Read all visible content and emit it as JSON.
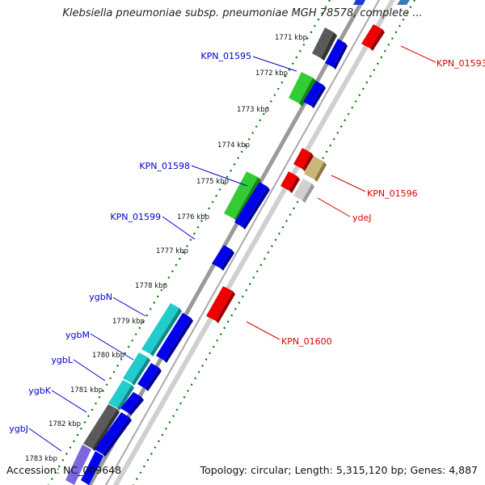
{
  "title": "Klebsiella pneumoniae subsp. pneumoniae MGH 78578, complete ...",
  "footer": {
    "accession": "Accession: NC_009648",
    "stats": "Topology: circular; Length: 5,315,120 bp; Genes: 4,887"
  },
  "colors": {
    "forward_track": "#0000ee",
    "reverse_track": "#ee0000",
    "rna": "#33cc33",
    "label_left": "#0000cc",
    "label_right": "#dd0000",
    "ticks": "#006600"
  },
  "ticks": [
    "1771 kbp",
    "1772 kbp",
    "1773 kbp",
    "1774 kbp",
    "1775 kbp",
    "1776 kbp",
    "1777 kbp",
    "1778 kbp",
    "1779 kbp",
    "1780 kbp",
    "1781 kbp",
    "1782 kbp",
    "1783 kbp"
  ],
  "gene_labels_left": [
    "KPN_01595",
    "KPN_01598",
    "KPN_01599",
    "ygbN",
    "ygbM",
    "ygbL",
    "ygbK",
    "ygbJ"
  ],
  "gene_labels_right": [
    "KPN_01593",
    "KPN_01596",
    "ydeJ",
    "KPN_01600"
  ]
}
